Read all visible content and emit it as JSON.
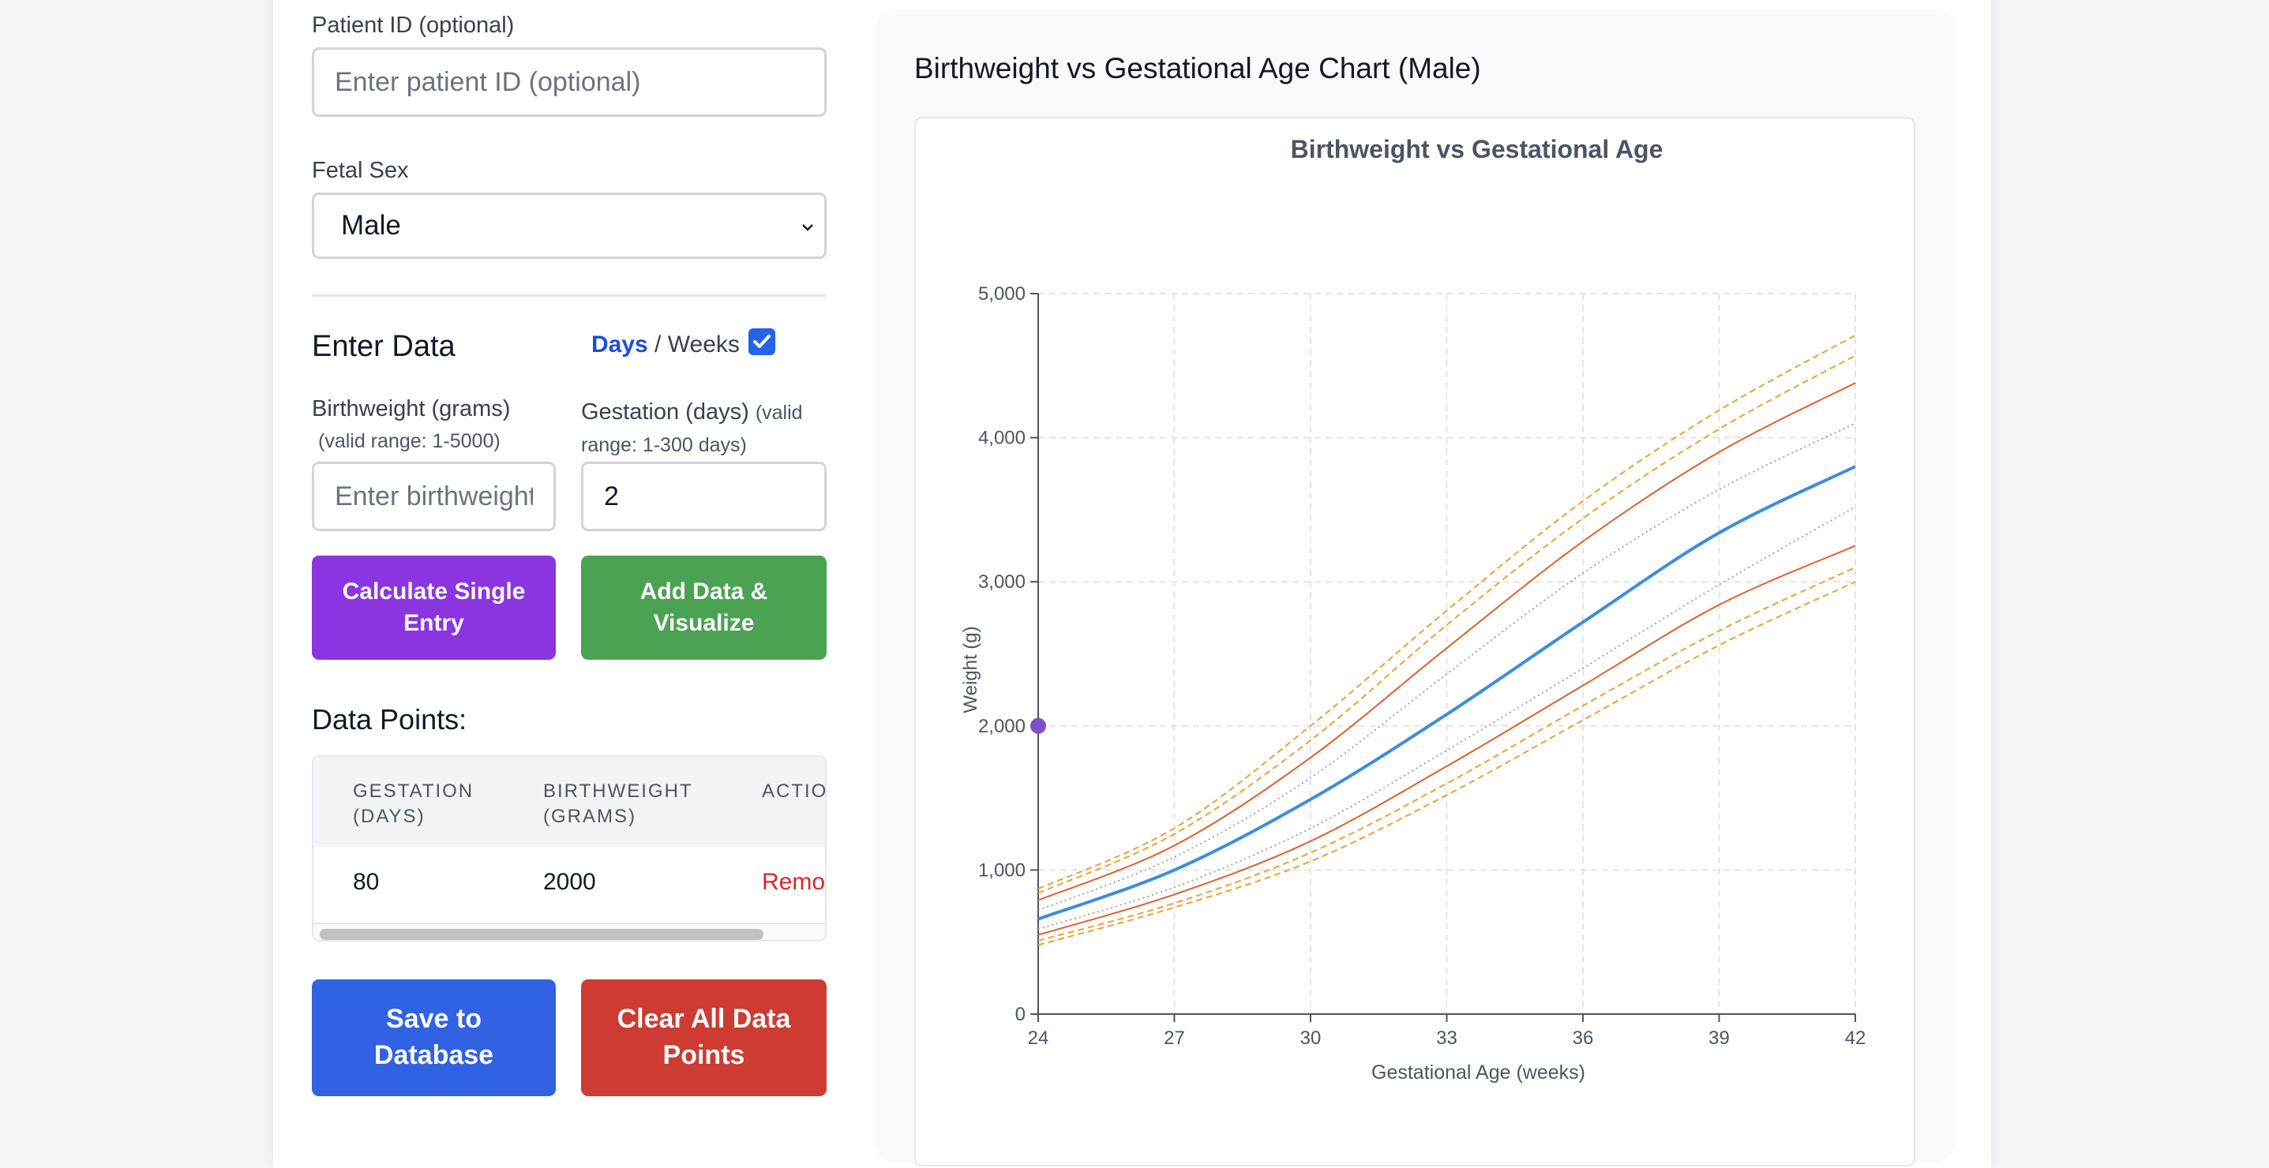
{
  "form": {
    "patient_id_label": "Patient ID (optional)",
    "patient_id_placeholder": "Enter patient ID (optional)",
    "patient_id_value": "",
    "fetal_sex_label": "Fetal Sex",
    "fetal_sex_value": "Male",
    "enter_data_title": "Enter Data",
    "toggle_days": "Days",
    "toggle_sep": " / ",
    "toggle_weeks": "Weeks",
    "toggle_checked": true,
    "birthweight_label": "Birthweight (grams)",
    "birthweight_hint": "(valid range: 1-5000)",
    "birthweight_placeholder": "Enter birthweight",
    "birthweight_value": "",
    "gestation_label": "Gestation (days)",
    "gestation_hint_1": "(valid",
    "gestation_hint_2": "range: 1-300 days)",
    "gestation_value": "2",
    "calc_button_line1": "Calculate Single",
    "calc_button_line2": "Entry",
    "add_button_line1": "Add Data &",
    "add_button_line2": "Visualize",
    "data_points_title": "Data Points:",
    "save_button_line1": "Save to",
    "save_button_line2": "Database",
    "clear_button_line1": "Clear All Data",
    "clear_button_line2": "Points"
  },
  "table": {
    "headers": {
      "gestation_1": "GESTATION",
      "gestation_2": "(DAYS)",
      "birthweight_1": "BIRTHWEIGHT",
      "birthweight_2": "(GRAMS)",
      "actions": "ACTIO"
    },
    "rows": [
      {
        "gestation": "80",
        "birthweight": "2000",
        "action": "Remov"
      }
    ]
  },
  "chart_panel": {
    "heading": "Birthweight vs Gestational Age Chart (Male)"
  },
  "colors": {
    "median": "#3b8de0",
    "outer_dashed": "#f0a030",
    "solid_orange": "#e0602a",
    "dotted_gray": "#a0a4aa",
    "data_point": "#7c4fc4"
  },
  "chart_data": {
    "type": "line",
    "title": "Birthweight vs Gestational Age",
    "xlabel": "Gestational Age (weeks)",
    "ylabel": "Weight (g)",
    "xlim": [
      24,
      42
    ],
    "ylim": [
      0,
      5000
    ],
    "xticks": [
      24,
      27,
      30,
      33,
      36,
      39,
      42
    ],
    "yticks": [
      0,
      1000,
      2000,
      3000,
      4000,
      5000
    ],
    "ytick_labels": [
      "0",
      "1,000",
      "2,000",
      "3,000",
      "4,000",
      "5,000"
    ],
    "grid": true,
    "x": [
      24,
      27,
      30,
      33,
      36,
      39,
      42
    ],
    "series": [
      {
        "style": "dashed-outer",
        "values": [
          870,
          1290,
          2000,
          2800,
          3560,
          4190,
          4710
        ]
      },
      {
        "style": "dashed-outer",
        "values": [
          840,
          1250,
          1900,
          2700,
          3440,
          4060,
          4570
        ]
      },
      {
        "style": "solid-orange",
        "values": [
          790,
          1170,
          1780,
          2540,
          3280,
          3900,
          4380
        ]
      },
      {
        "style": "dotted-gray",
        "values": [
          720,
          1090,
          1640,
          2360,
          3060,
          3640,
          4100
        ]
      },
      {
        "style": "median",
        "values": [
          660,
          1000,
          1490,
          2080,
          2720,
          3340,
          3800
        ]
      },
      {
        "style": "dotted-gray",
        "values": [
          590,
          880,
          1290,
          1830,
          2400,
          2980,
          3520
        ]
      },
      {
        "style": "solid-orange",
        "values": [
          550,
          830,
          1200,
          1720,
          2280,
          2840,
          3250
        ]
      },
      {
        "style": "dashed-outer",
        "values": [
          510,
          770,
          1120,
          1600,
          2140,
          2660,
          3100
        ]
      },
      {
        "style": "dashed-outer",
        "values": [
          480,
          740,
          1060,
          1520,
          2040,
          2560,
          3000
        ]
      }
    ],
    "points": [
      {
        "x": 24,
        "y": 2000
      }
    ]
  }
}
